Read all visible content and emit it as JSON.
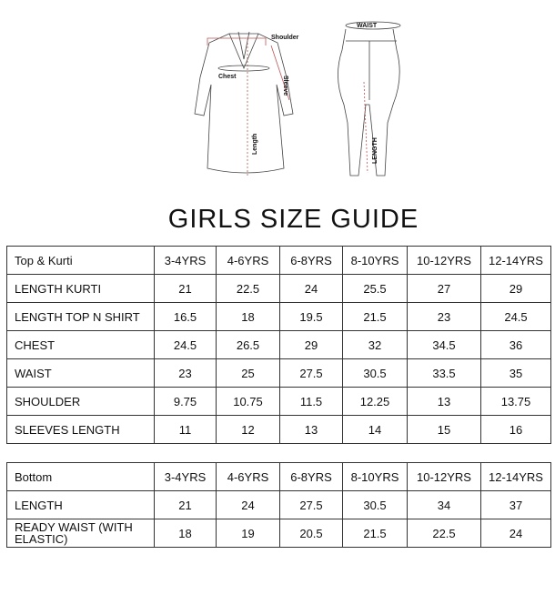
{
  "illustration": {
    "labels": {
      "shoulder": "Shoulder",
      "chest": "Chest",
      "sleeve": "Sleeve",
      "length": "Length",
      "waist": "WAIST",
      "pant_length": "LENGTH"
    }
  },
  "title": "GIRLS SIZE GUIDE",
  "sizes": [
    "3-4YRS",
    "4-6YRS",
    "6-8YRS",
    "8-10YRS",
    "10-12YRS",
    "12-14YRS"
  ],
  "top_table": {
    "header": "Top & Kurti",
    "rows": [
      {
        "label": "LENGTH KURTI",
        "values": [
          "21",
          "22.5",
          "24",
          "25.5",
          "27",
          "29"
        ]
      },
      {
        "label": "LENGTH TOP N SHIRT",
        "values": [
          "16.5",
          "18",
          "19.5",
          "21.5",
          "23",
          "24.5"
        ]
      },
      {
        "label": "CHEST",
        "values": [
          "24.5",
          "26.5",
          "29",
          "32",
          "34.5",
          "36"
        ]
      },
      {
        "label": "WAIST",
        "values": [
          "23",
          "25",
          "27.5",
          "30.5",
          "33.5",
          "35"
        ]
      },
      {
        "label": "SHOULDER",
        "values": [
          "9.75",
          "10.75",
          "11.5",
          "12.25",
          "13",
          "13.75"
        ]
      },
      {
        "label": "SLEEVES LENGTH",
        "values": [
          "11",
          "12",
          "13",
          "14",
          "15",
          "16"
        ]
      }
    ]
  },
  "bottom_table": {
    "header": "Bottom",
    "rows": [
      {
        "label": "LENGTH",
        "values": [
          "21",
          "24",
          "27.5",
          "30.5",
          "34",
          "37"
        ]
      },
      {
        "label": "READY WAIST (WITH ELASTIC)",
        "values": [
          "18",
          "19",
          "20.5",
          "21.5",
          "22.5",
          "24"
        ]
      }
    ]
  }
}
